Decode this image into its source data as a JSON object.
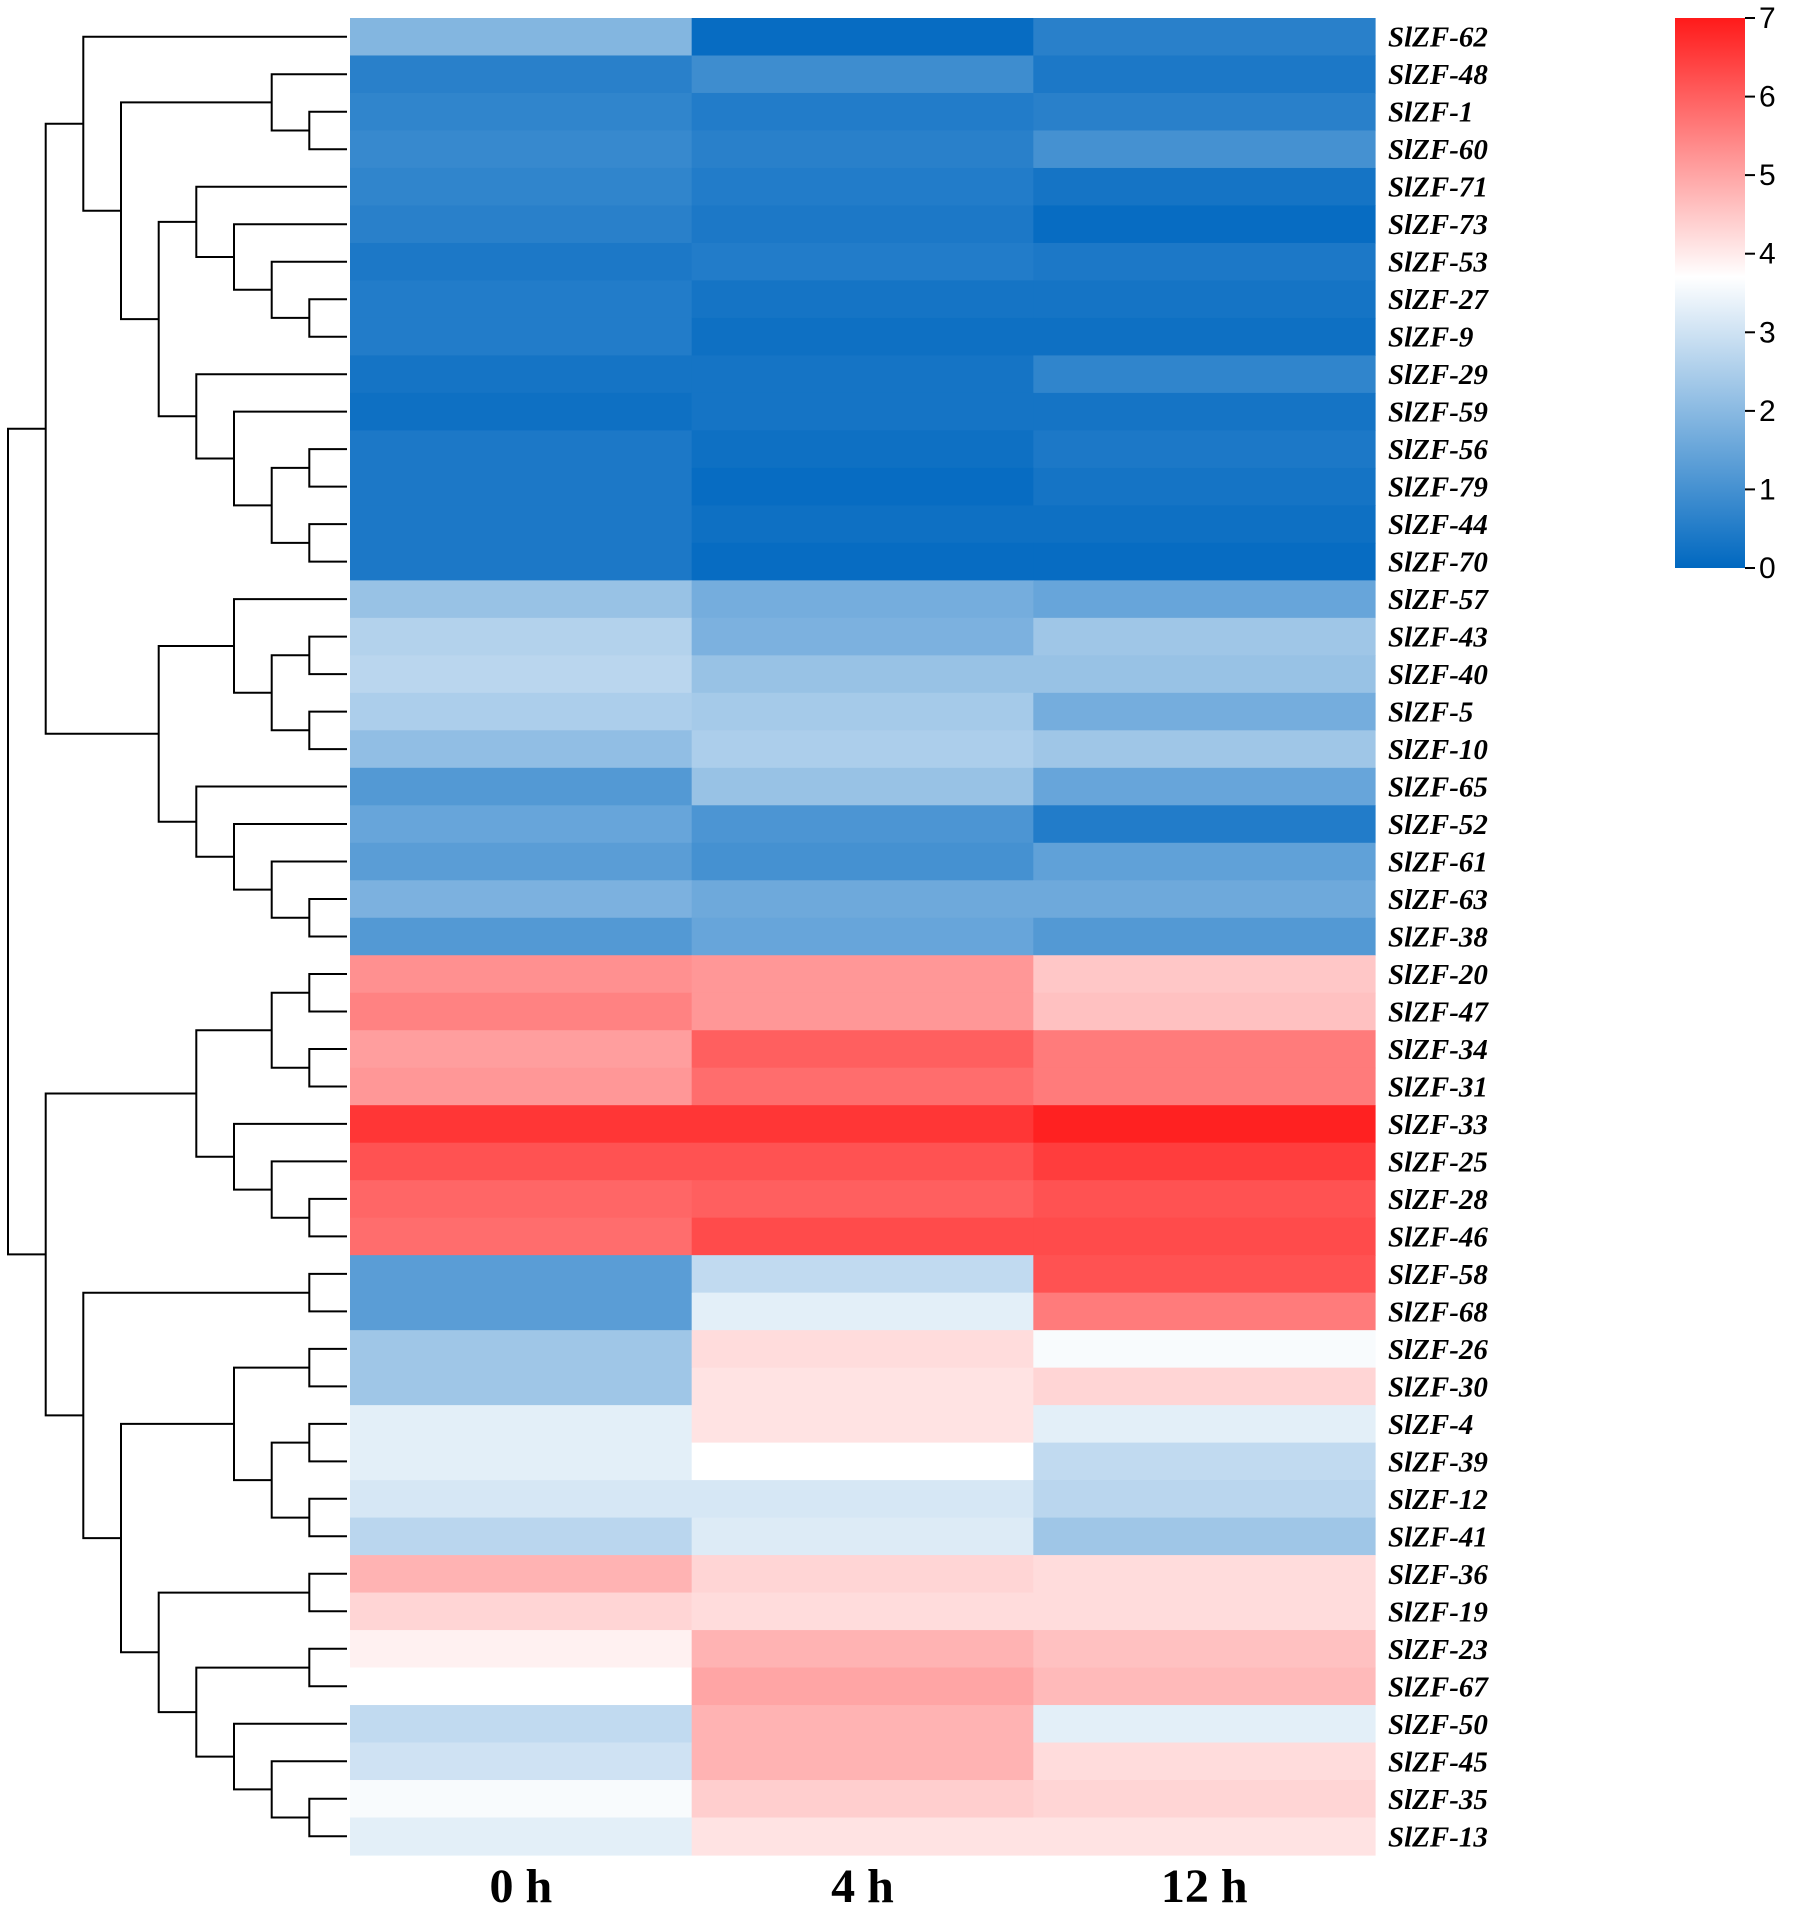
{
  "chart_data": {
    "type": "heatmap",
    "title": "",
    "columns": [
      "0 h",
      "4 h",
      "12 h"
    ],
    "rows": [
      "SlZF-62",
      "SlZF-48",
      "SlZF-1",
      "SlZF-60",
      "SlZF-71",
      "SlZF-73",
      "SlZF-53",
      "SlZF-27",
      "SlZF-9",
      "SlZF-29",
      "SlZF-59",
      "SlZF-56",
      "SlZF-79",
      "SlZF-44",
      "SlZF-70",
      "SlZF-57",
      "SlZF-43",
      "SlZF-40",
      "SlZF-5",
      "SlZF-10",
      "SlZF-65",
      "SlZF-52",
      "SlZF-61",
      "SlZF-63",
      "SlZF-38",
      "SlZF-20",
      "SlZF-47",
      "SlZF-34",
      "SlZF-31",
      "SlZF-33",
      "SlZF-25",
      "SlZF-28",
      "SlZF-46",
      "SlZF-58",
      "SlZF-68",
      "SlZF-26",
      "SlZF-30",
      "SlZF-4",
      "SlZF-39",
      "SlZF-12",
      "SlZF-41",
      "SlZF-36",
      "SlZF-19",
      "SlZF-23",
      "SlZF-67",
      "SlZF-50",
      "SlZF-45",
      "SlZF-35",
      "SlZF-13"
    ],
    "values": [
      [
        1.9,
        0.1,
        0.6
      ],
      [
        0.6,
        0.9,
        0.4
      ],
      [
        0.7,
        0.5,
        0.6
      ],
      [
        0.8,
        0.6,
        1.0
      ],
      [
        0.7,
        0.5,
        0.3
      ],
      [
        0.6,
        0.4,
        0.1
      ],
      [
        0.4,
        0.5,
        0.4
      ],
      [
        0.5,
        0.3,
        0.3
      ],
      [
        0.5,
        0.2,
        0.2
      ],
      [
        0.3,
        0.3,
        0.7
      ],
      [
        0.2,
        0.3,
        0.3
      ],
      [
        0.4,
        0.2,
        0.4
      ],
      [
        0.4,
        0.1,
        0.3
      ],
      [
        0.4,
        0.2,
        0.2
      ],
      [
        0.4,
        0.1,
        0.1
      ],
      [
        2.2,
        1.7,
        1.5
      ],
      [
        2.6,
        1.8,
        2.3
      ],
      [
        2.7,
        2.2,
        2.2
      ],
      [
        2.5,
        2.4,
        1.7
      ],
      [
        2.1,
        2.5,
        2.3
      ],
      [
        1.2,
        2.2,
        1.5
      ],
      [
        1.5,
        1.1,
        0.5
      ],
      [
        1.3,
        1.0,
        1.4
      ],
      [
        1.8,
        1.6,
        1.6
      ],
      [
        1.2,
        1.5,
        1.2
      ],
      [
        5.3,
        5.2,
        4.5
      ],
      [
        5.5,
        5.2,
        4.6
      ],
      [
        5.1,
        6.0,
        5.6
      ],
      [
        5.2,
        5.8,
        5.6
      ],
      [
        6.6,
        6.6,
        6.9
      ],
      [
        6.2,
        6.2,
        6.5
      ],
      [
        5.9,
        6.0,
        6.2
      ],
      [
        5.8,
        6.3,
        6.3
      ],
      [
        1.3,
        2.8,
        6.2
      ],
      [
        1.3,
        3.3,
        5.6
      ],
      [
        2.3,
        4.2,
        3.6
      ],
      [
        2.3,
        4.1,
        4.3
      ],
      [
        3.3,
        4.1,
        3.3
      ],
      [
        3.3,
        3.7,
        2.8
      ],
      [
        3.1,
        3.1,
        2.7
      ],
      [
        2.7,
        3.2,
        2.3
      ],
      [
        4.8,
        4.3,
        4.2
      ],
      [
        4.3,
        4.2,
        4.2
      ],
      [
        3.9,
        4.8,
        4.6
      ],
      [
        3.7,
        5.0,
        4.7
      ],
      [
        2.8,
        4.8,
        3.3
      ],
      [
        3.0,
        4.8,
        4.2
      ],
      [
        3.6,
        4.4,
        4.3
      ],
      [
        3.3,
        4.1,
        4.1
      ]
    ],
    "colorbar": {
      "min": 0,
      "max": 7,
      "ticks": [
        "0",
        "1",
        "2",
        "3",
        "4",
        "5",
        "6",
        "7"
      ],
      "colors": {
        "low": "#0068c0",
        "mid": "#ffffff",
        "high": "#ff1a1a"
      },
      "mid_value": 3.7,
      "position": "top-right"
    },
    "dendrogram_leaves": [
      {
        "id": "a1",
        "label": "SlZF-62"
      },
      {
        "id": "a2",
        "label": "SlZF-48"
      },
      {
        "id": "a3",
        "label": "SlZF-1"
      },
      {
        "id": "a4",
        "label": "SlZF-60"
      },
      {
        "id": "a5",
        "label": "SlZF-71"
      },
      {
        "id": "a6",
        "label": "SlZF-73"
      },
      {
        "id": "a7",
        "label": "SlZF-53"
      },
      {
        "id": "a8",
        "label": "SlZF-27"
      },
      {
        "id": "a9",
        "label": "SlZF-9"
      },
      {
        "id": "a10",
        "label": "SlZF-29"
      },
      {
        "id": "a11",
        "label": "SlZF-59"
      },
      {
        "id": "a12",
        "label": "SlZF-56"
      },
      {
        "id": "a13",
        "label": "SlZF-79"
      },
      {
        "id": "a14",
        "label": "SlZF-44"
      },
      {
        "id": "a15",
        "label": "SlZF-70"
      },
      {
        "id": "a16",
        "label": "SlZF-57"
      },
      {
        "id": "a17",
        "label": "SlZF-43"
      },
      {
        "id": "a18",
        "label": "SlZF-40"
      },
      {
        "id": "a19",
        "label": "SlZF-5"
      },
      {
        "id": "a20",
        "label": "SlZF-10"
      },
      {
        "id": "a21",
        "label": "SlZF-65"
      },
      {
        "id": "a22",
        "label": "SlZF-52"
      },
      {
        "id": "a23",
        "label": "SlZF-61"
      },
      {
        "id": "a24",
        "label": "SlZF-63"
      },
      {
        "id": "a25",
        "label": "SlZF-38"
      },
      {
        "id": "a26",
        "label": "SlZF-20"
      },
      {
        "id": "a27",
        "label": "SlZF-47"
      },
      {
        "id": "a28",
        "label": "SlZF-34"
      },
      {
        "id": "a29",
        "label": "SlZF-31"
      },
      {
        "id": "a30",
        "label": "SlZF-33"
      },
      {
        "id": "a31",
        "label": "SlZF-25"
      },
      {
        "id": "a32",
        "label": "SlZF-28"
      },
      {
        "id": "a33",
        "label": "SlZF-46"
      },
      {
        "id": "a34",
        "label": "SlZF-58"
      },
      {
        "id": "a35",
        "label": "SlZF-68"
      },
      {
        "id": "a36",
        "label": "SlZF-26"
      },
      {
        "id": "a37",
        "label": "SlZF-30"
      },
      {
        "id": "a38",
        "label": "SlZF-4"
      },
      {
        "id": "a39",
        "label": "SlZF-39"
      },
      {
        "id": "a40",
        "label": "SlZF-12"
      },
      {
        "id": "a41",
        "label": "SlZF-41"
      },
      {
        "id": "a42",
        "label": "SlZF-36"
      },
      {
        "id": "a43",
        "label": "SlZF-19"
      },
      {
        "id": "a44",
        "label": "SlZF-23"
      },
      {
        "id": "a45",
        "label": "SlZF-67"
      },
      {
        "id": "a46",
        "label": "SlZF-50"
      },
      {
        "id": "a47",
        "label": "SlZF-45"
      },
      {
        "id": "a48",
        "label": "SlZF-35"
      },
      {
        "id": "a49",
        "label": "SlZF-13"
      }
    ],
    "dendrogram_merges": [
      {
        "id": "m1",
        "a": "a3",
        "b": "a4",
        "height": 0.5
      },
      {
        "id": "m2",
        "a": "a2",
        "b": "m1",
        "height": 1.0
      },
      {
        "id": "m3",
        "a": "a8",
        "b": "a9",
        "height": 0.5
      },
      {
        "id": "m4",
        "a": "a7",
        "b": "m3",
        "height": 1.0
      },
      {
        "id": "m5",
        "a": "a6",
        "b": "m4",
        "height": 1.5
      },
      {
        "id": "m6",
        "a": "a5",
        "b": "m5",
        "height": 2.0
      },
      {
        "id": "m7",
        "a": "a12",
        "b": "a13",
        "height": 0.5
      },
      {
        "id": "m8",
        "a": "a14",
        "b": "a15",
        "height": 0.5
      },
      {
        "id": "m9",
        "a": "m7",
        "b": "m8",
        "height": 1.0
      },
      {
        "id": "m10",
        "a": "a11",
        "b": "m9",
        "height": 1.5
      },
      {
        "id": "m11",
        "a": "a10",
        "b": "m10",
        "height": 2.0
      },
      {
        "id": "m12",
        "a": "m6",
        "b": "m11",
        "height": 2.5
      },
      {
        "id": "m13",
        "a": "m2",
        "b": "m12",
        "height": 3.0
      },
      {
        "id": "m14",
        "a": "a1",
        "b": "m13",
        "height": 3.5
      },
      {
        "id": "m15",
        "a": "a17",
        "b": "a18",
        "height": 0.5
      },
      {
        "id": "m16",
        "a": "a19",
        "b": "a20",
        "height": 0.5
      },
      {
        "id": "m17",
        "a": "m15",
        "b": "m16",
        "height": 1.0
      },
      {
        "id": "m18",
        "a": "a16",
        "b": "m17",
        "height": 1.5
      },
      {
        "id": "m19",
        "a": "a24",
        "b": "a25",
        "height": 0.5
      },
      {
        "id": "m20",
        "a": "a23",
        "b": "m19",
        "height": 1.0
      },
      {
        "id": "m21",
        "a": "a22",
        "b": "m20",
        "height": 1.5
      },
      {
        "id": "m22",
        "a": "a21",
        "b": "m21",
        "height": 2.0
      },
      {
        "id": "m23",
        "a": "m18",
        "b": "m22",
        "height": 2.5
      },
      {
        "id": "m24",
        "a": "m14",
        "b": "m23",
        "height": 4.0
      },
      {
        "id": "m25",
        "a": "a26",
        "b": "a27",
        "height": 0.5
      },
      {
        "id": "m26",
        "a": "a28",
        "b": "a29",
        "height": 0.5
      },
      {
        "id": "m27",
        "a": "m25",
        "b": "m26",
        "height": 1.0
      },
      {
        "id": "m28",
        "a": "a32",
        "b": "a33",
        "height": 0.5
      },
      {
        "id": "m29",
        "a": "a31",
        "b": "m28",
        "height": 1.0
      },
      {
        "id": "m30",
        "a": "a30",
        "b": "m29",
        "height": 1.5
      },
      {
        "id": "m31",
        "a": "m27",
        "b": "m30",
        "height": 2.0
      },
      {
        "id": "m32",
        "a": "a34",
        "b": "a35",
        "height": 0.5
      },
      {
        "id": "m33",
        "a": "a36",
        "b": "a37",
        "height": 0.5
      },
      {
        "id": "m34",
        "a": "a38",
        "b": "a39",
        "height": 0.5
      },
      {
        "id": "m35",
        "a": "a40",
        "b": "a41",
        "height": 0.5
      },
      {
        "id": "m36",
        "a": "m34",
        "b": "m35",
        "height": 1.0
      },
      {
        "id": "m37",
        "a": "m33",
        "b": "m36",
        "height": 1.5
      },
      {
        "id": "m38",
        "a": "a42",
        "b": "a43",
        "height": 0.5
      },
      {
        "id": "m39",
        "a": "a44",
        "b": "a45",
        "height": 0.5
      },
      {
        "id": "m40",
        "a": "a48",
        "b": "a49",
        "height": 0.5
      },
      {
        "id": "m41",
        "a": "a47",
        "b": "m40",
        "height": 1.0
      },
      {
        "id": "m42",
        "a": "a46",
        "b": "m41",
        "height": 1.5
      },
      {
        "id": "m43",
        "a": "m39",
        "b": "m42",
        "height": 2.0
      },
      {
        "id": "m44",
        "a": "m38",
        "b": "m43",
        "height": 2.5
      },
      {
        "id": "m45",
        "a": "m37",
        "b": "m44",
        "height": 3.0
      },
      {
        "id": "m46",
        "a": "m32",
        "b": "m45",
        "height": 3.5
      },
      {
        "id": "m47",
        "a": "m31",
        "b": "m46",
        "height": 4.0
      },
      {
        "id": "m48",
        "a": "m24",
        "b": "m47",
        "height": 4.5
      }
    ]
  }
}
